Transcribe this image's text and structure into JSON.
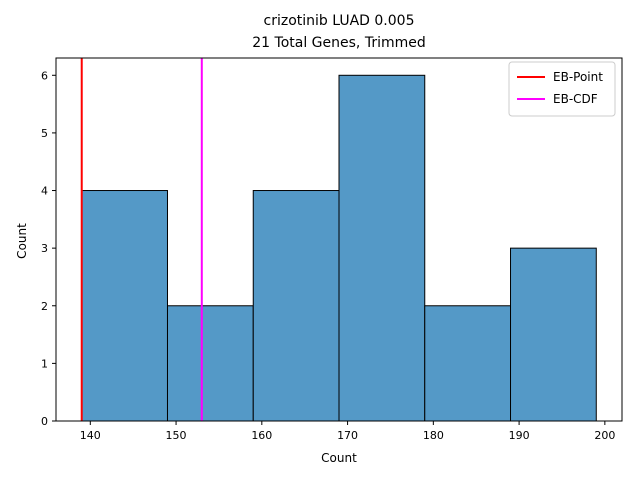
{
  "chart_data": {
    "type": "bar",
    "title": "crizotinib LUAD 0.005",
    "subtitle": "21 Total Genes, Trimmed",
    "xlabel": "Count",
    "ylabel": "Count",
    "xlim": [
      136,
      202
    ],
    "ylim": [
      0,
      6.3
    ],
    "xticks": [
      140,
      150,
      160,
      170,
      180,
      190,
      200
    ],
    "yticks": [
      0,
      1,
      2,
      3,
      4,
      5,
      6
    ],
    "bins": [
      {
        "x0": 139,
        "x1": 149,
        "count": 4
      },
      {
        "x0": 149,
        "x1": 159,
        "count": 2
      },
      {
        "x0": 159,
        "x1": 169,
        "count": 4
      },
      {
        "x0": 169,
        "x1": 179,
        "count": 6
      },
      {
        "x0": 179,
        "x1": 189,
        "count": 2
      },
      {
        "x0": 189,
        "x1": 199,
        "count": 3
      }
    ],
    "vlines": [
      {
        "name": "EB-Point",
        "x": 139,
        "color": "#ff0000"
      },
      {
        "name": "EB-CDF",
        "x": 153,
        "color": "#ff00ff"
      }
    ],
    "bar_color": "#5499c7",
    "bar_edge_color": "#000000",
    "legend_position": "top-right",
    "grid": false
  }
}
